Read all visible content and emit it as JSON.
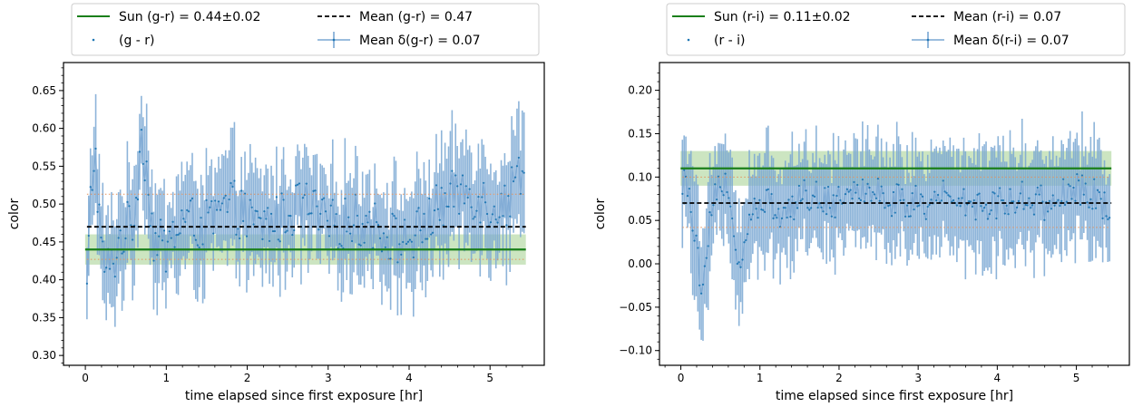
{
  "chart_data": [
    {
      "type": "line",
      "xlabel": "time elapsed since first exposure [hr]",
      "ylabel": "color",
      "xlim": [
        -0.27,
        5.67
      ],
      "ylim": [
        0.287,
        0.687
      ],
      "xticks": [
        "0",
        "1",
        "2",
        "3",
        "4",
        "5"
      ],
      "yticks": [
        "0.30",
        "0.35",
        "0.40",
        "0.45",
        "0.50",
        "0.55",
        "0.60",
        "0.65"
      ],
      "legend": [
        {
          "label": "Sun (g-r) = 0.44±0.02",
          "style": "sun"
        },
        {
          "label": "Mean (g-r) = 0.47",
          "style": "mean"
        },
        {
          "label": "(g - r)",
          "style": "points"
        },
        {
          "label": "Mean δ(g-r) = 0.07",
          "style": "errbar"
        }
      ],
      "sun": {
        "value": 0.44,
        "err": 0.02
      },
      "mean": 0.47,
      "mean_err": 0.07,
      "std_lines": [
        0.427,
        0.513
      ],
      "x_range": [
        0.02,
        5.42
      ],
      "n_points": 250,
      "series": {
        "anchors_x": [
          0.02,
          0.07,
          0.12,
          0.2,
          0.3,
          0.45,
          0.6,
          0.7,
          0.85,
          1.0,
          1.2,
          1.5,
          1.8,
          2.1,
          2.4,
          2.7,
          3.0,
          3.3,
          3.6,
          3.9,
          4.1,
          4.4,
          4.7,
          5.0,
          5.2,
          5.42
        ],
        "anchors_y": [
          0.38,
          0.52,
          0.575,
          0.43,
          0.41,
          0.46,
          0.48,
          0.6,
          0.45,
          0.44,
          0.48,
          0.47,
          0.5,
          0.47,
          0.48,
          0.5,
          0.47,
          0.48,
          0.47,
          0.45,
          0.46,
          0.5,
          0.52,
          0.5,
          0.5,
          0.56
        ],
        "noise": 0.035,
        "err": 0.07
      },
      "colors": {
        "sun": "#1a7f1a",
        "sun_band": "#c3e0b6",
        "points": "#1f77b4",
        "errbar": "#7aa7d3",
        "mean": "#000000",
        "std": "#e6915a"
      }
    },
    {
      "type": "line",
      "xlabel": "time elapsed since first exposure [hr]",
      "ylabel": "color",
      "xlim": [
        -0.27,
        5.67
      ],
      "ylim": [
        -0.117,
        0.232
      ],
      "xticks": [
        "0",
        "1",
        "2",
        "3",
        "4",
        "5"
      ],
      "yticks": [
        "−0.10",
        "−0.05",
        "0.00",
        "0.05",
        "0.10",
        "0.15",
        "0.20"
      ],
      "legend": [
        {
          "label": "Sun (r-i) = 0.11±0.02",
          "style": "sun"
        },
        {
          "label": "Mean (r-i) = 0.07",
          "style": "mean"
        },
        {
          "label": "(r - i)",
          "style": "points"
        },
        {
          "label": "Mean δ(r-i) = 0.07",
          "style": "errbar"
        }
      ],
      "sun": {
        "value": 0.11,
        "err": 0.02
      },
      "mean": 0.07,
      "mean_err": 0.07,
      "std_lines": [
        0.042,
        0.1
      ],
      "x_range": [
        0.02,
        5.42
      ],
      "n_points": 250,
      "series": {
        "anchors_x": [
          0.02,
          0.1,
          0.2,
          0.25,
          0.4,
          0.6,
          0.75,
          0.9,
          1.1,
          1.3,
          1.6,
          1.9,
          2.2,
          2.5,
          2.8,
          3.1,
          3.4,
          3.7,
          4.0,
          4.3,
          4.6,
          4.9,
          5.1,
          5.3,
          5.42
        ],
        "anchors_y": [
          0.1,
          0.09,
          0.02,
          -0.03,
          0.08,
          0.09,
          -0.015,
          0.06,
          0.07,
          0.06,
          0.08,
          0.07,
          0.09,
          0.08,
          0.07,
          0.07,
          0.08,
          0.07,
          0.07,
          0.08,
          0.07,
          0.08,
          0.09,
          0.07,
          0.06
        ],
        "noise": 0.02,
        "err": 0.065
      },
      "colors": {
        "sun": "#1a7f1a",
        "sun_band": "#c3e0b6",
        "points": "#1f77b4",
        "errbar": "#7aa7d3",
        "mean": "#000000",
        "std": "#e6915a"
      }
    }
  ]
}
